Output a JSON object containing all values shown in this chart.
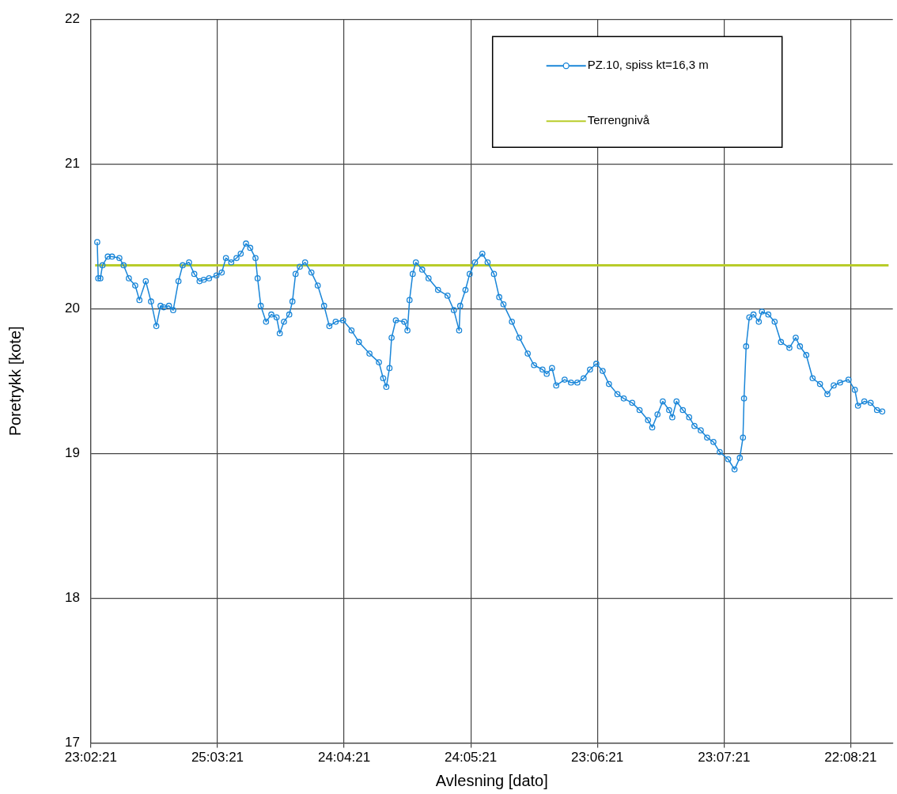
{
  "chart_data": {
    "type": "line",
    "xlabel": "Avlesning [dato]",
    "ylabel": "Poretrykk [kote]",
    "xlim": [
      "2021-02-23",
      "2021-09-01"
    ],
    "xticks": [
      {
        "value": "2021-02-23",
        "label": "23:02:21"
      },
      {
        "value": "2021-03-25",
        "label": "25:03:21"
      },
      {
        "value": "2021-04-24",
        "label": "24:04:21"
      },
      {
        "value": "2021-05-24",
        "label": "24:05:21"
      },
      {
        "value": "2021-06-23",
        "label": "23:06:21"
      },
      {
        "value": "2021-07-23",
        "label": "23:07:21"
      },
      {
        "value": "2021-08-22",
        "label": "22:08:21"
      }
    ],
    "ylim": [
      17,
      22
    ],
    "yticks": [
      17,
      18,
      19,
      20,
      21,
      22
    ],
    "grid": true,
    "legend": "top right",
    "marker": "circle",
    "line_style": "solid",
    "series": [
      {
        "name": "PZ.10, spiss kt=16,3 m",
        "color": "#1a86d8",
        "x": [
          "2021-02-24T12:00",
          "2021-02-24T18:00",
          "2021-02-25T06:00",
          "2021-02-25T18:00",
          "2021-02-27",
          "2021-02-28",
          "2021-03-01T18:00",
          "2021-03-02T18:00",
          "2021-03-04",
          "2021-03-05T12:00",
          "2021-03-06T12:00",
          "2021-03-08",
          "2021-03-09T06:00",
          "2021-03-10T12:00",
          "2021-03-11T12:00",
          "2021-03-12T06:00",
          "2021-03-13T12:00",
          "2021-03-14T12:00",
          "2021-03-15T18:00",
          "2021-03-16T18:00",
          "2021-03-18T06:00",
          "2021-03-19T12:00",
          "2021-03-20T18:00",
          "2021-03-21T18:00",
          "2021-03-23",
          "2021-03-24T18:00",
          "2021-03-26",
          "2021-03-27",
          "2021-03-28T06:00",
          "2021-03-29T12:00",
          "2021-03-30T12:00",
          "2021-03-31T18:00",
          "2021-04-01T18:00",
          "2021-04-03",
          "2021-04-03T12:00",
          "2021-04-04T06:00",
          "2021-04-05T12:00",
          "2021-04-06T18:00",
          "2021-04-08",
          "2021-04-08T18:00",
          "2021-04-09T18:00",
          "2021-04-11",
          "2021-04-11T18:00",
          "2021-04-12T12:00",
          "2021-04-13T12:00",
          "2021-04-14T18:00",
          "2021-04-16T06:00",
          "2021-04-17T18:00",
          "2021-04-19T06:00",
          "2021-04-20T12:00",
          "2021-04-22",
          "2021-04-23T18:00",
          "2021-04-25T18:00",
          "2021-04-27T12:00",
          "2021-04-30",
          "2021-05-02T06:00",
          "2021-05-03T06:00",
          "2021-05-04",
          "2021-05-04T18:00",
          "2021-05-05T06:00",
          "2021-05-06T06:00",
          "2021-05-08T06:00",
          "2021-05-09",
          "2021-05-09T12:00",
          "2021-05-10T06:00",
          "2021-05-11",
          "2021-05-12T12:00",
          "2021-05-14",
          "2021-05-16T06:00",
          "2021-05-18T12:00",
          "2021-05-20",
          "2021-05-21T06:00",
          "2021-05-21T12:00",
          "2021-05-22T18:00",
          "2021-05-23T18:00",
          "2021-05-25",
          "2021-05-26T18:00",
          "2021-05-28",
          "2021-05-29T12:00",
          "2021-05-30T18:00",
          "2021-05-31T18:00",
          "2021-06-02T18:00",
          "2021-06-04T12:00",
          "2021-06-06T12:00",
          "2021-06-08",
          "2021-06-10",
          "2021-06-11",
          "2021-06-12T06:00",
          "2021-06-13T06:00",
          "2021-06-15T06:00",
          "2021-06-16T18:00",
          "2021-06-18T06:00",
          "2021-06-19T18:00",
          "2021-06-21T06:00",
          "2021-06-22T18:00",
          "2021-06-24T06:00",
          "2021-06-25T18:00",
          "2021-06-27T18:00",
          "2021-06-29T06:00",
          "2021-07-01T06:00",
          "2021-07-03",
          "2021-07-05",
          "2021-07-06",
          "2021-07-07T06:00",
          "2021-07-08T12:00",
          "2021-07-10",
          "2021-07-10T18:00",
          "2021-07-11T18:00",
          "2021-07-13T06:00",
          "2021-07-14T18:00",
          "2021-07-16",
          "2021-07-17T12:00",
          "2021-07-19",
          "2021-07-20T12:00",
          "2021-07-22",
          "2021-07-24",
          "2021-07-25T12:00",
          "2021-07-26T18:00",
          "2021-07-27T12:00",
          "2021-07-27T18:00",
          "2021-07-28T06:00",
          "2021-07-29",
          "2021-07-30",
          "2021-07-31T06:00",
          "2021-08-01",
          "2021-08-02T12:00",
          "2021-08-04",
          "2021-08-05T12:00",
          "2021-08-07T12:00",
          "2021-08-09",
          "2021-08-10",
          "2021-08-11T12:00",
          "2021-08-13",
          "2021-08-14T18:00",
          "2021-08-16T12:00",
          "2021-08-18",
          "2021-08-19T12:00",
          "2021-08-21T12:00",
          "2021-08-23",
          "2021-08-23T18:00",
          "2021-08-25T06:00",
          "2021-08-26T18:00",
          "2021-08-28T06:00",
          "2021-08-29T12:00"
        ],
        "values": [
          20.46,
          20.21,
          20.21,
          20.3,
          20.36,
          20.36,
          20.35,
          20.3,
          20.21,
          20.16,
          20.06,
          20.19,
          20.05,
          19.88,
          20.02,
          20.01,
          20.02,
          19.99,
          20.19,
          20.3,
          20.32,
          20.24,
          20.19,
          20.2,
          20.21,
          20.23,
          20.25,
          20.35,
          20.32,
          20.35,
          20.38,
          20.45,
          20.42,
          20.35,
          20.21,
          20.02,
          19.91,
          19.96,
          19.94,
          19.83,
          19.91,
          19.96,
          20.05,
          20.24,
          20.29,
          20.32,
          20.25,
          20.16,
          20.02,
          19.88,
          19.91,
          19.92,
          19.85,
          19.77,
          19.69,
          19.63,
          19.52,
          19.46,
          19.59,
          19.8,
          19.92,
          19.91,
          19.85,
          20.06,
          20.24,
          20.32,
          20.27,
          20.21,
          20.13,
          20.09,
          19.99,
          19.85,
          20.02,
          20.13,
          20.24,
          20.32,
          20.38,
          20.32,
          20.24,
          20.08,
          20.03,
          19.91,
          19.8,
          19.69,
          19.61,
          19.58,
          19.55,
          19.59,
          19.47,
          19.51,
          19.49,
          19.49,
          19.52,
          19.58,
          19.62,
          19.57,
          19.48,
          19.41,
          19.38,
          19.35,
          19.3,
          19.23,
          19.18,
          19.27,
          19.36,
          19.3,
          19.25,
          19.36,
          19.3,
          19.25,
          19.19,
          19.16,
          19.11,
          19.08,
          19.01,
          18.96,
          18.89,
          18.97,
          19.11,
          19.38,
          19.74,
          19.94,
          19.96,
          19.91,
          19.98,
          19.96,
          19.91,
          19.77,
          19.73,
          19.8,
          19.74,
          19.68,
          19.52,
          19.48,
          19.41,
          19.47,
          19.49,
          19.51,
          19.44,
          19.33,
          19.36,
          19.35,
          19.3,
          19.29
        ]
      },
      {
        "name": "Terrengnivå",
        "color": "#b8cc2a",
        "marker": "none",
        "x": [
          "2021-02-24",
          "2021-08-31"
        ],
        "values": [
          20.3,
          20.3
        ]
      }
    ]
  }
}
